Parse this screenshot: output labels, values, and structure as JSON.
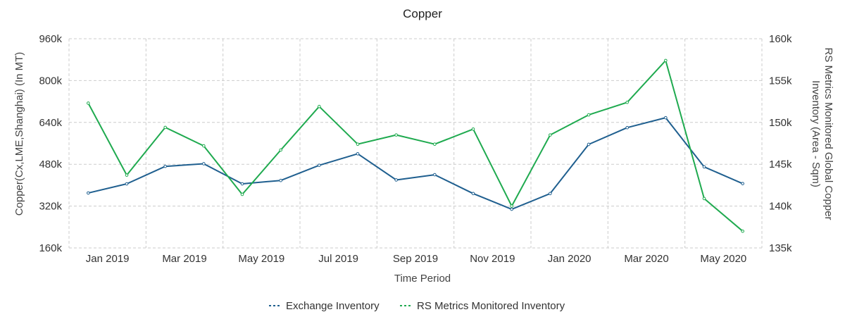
{
  "chart_data": {
    "type": "line",
    "title": "Copper",
    "xlabel": "Time Period",
    "ylabel_left": "Copper(Cx,LME,Shanghai) (In MT)",
    "ylabel_right": "RS Metrics Monitored Global Copper Inventory (Area - Sqm)",
    "x": [
      "Dec 2018",
      "Jan 2019",
      "Feb 2019",
      "Mar 2019",
      "Apr 2019",
      "May 2019",
      "Jun 2019",
      "Jul 2019",
      "Aug 2019",
      "Sep 2019",
      "Oct 2019",
      "Nov 2019",
      "Dec 2019",
      "Jan 2020",
      "Feb 2020",
      "Mar 2020",
      "Apr 2020",
      "May 2020"
    ],
    "x_tick_labels": [
      "Jan 2019",
      "Mar 2019",
      "May 2019",
      "Jul 2019",
      "Sep 2019",
      "Nov 2019",
      "Jan 2020",
      "Mar 2020",
      "May 2020"
    ],
    "left_ylim": [
      160000,
      960000
    ],
    "left_ticks": [
      160000,
      320000,
      480000,
      640000,
      800000,
      960000
    ],
    "left_tick_labels": [
      "160k",
      "320k",
      "480k",
      "640k",
      "800k",
      "960k"
    ],
    "right_ylim": [
      135000,
      160000
    ],
    "right_ticks": [
      135000,
      140000,
      145000,
      150000,
      155000,
      160000
    ],
    "right_tick_labels": [
      "135k",
      "140k",
      "145k",
      "150k",
      "155k",
      "160k"
    ],
    "series": [
      {
        "name": "Exchange Inventory",
        "axis": "left",
        "color": "#1f5f8f",
        "values": [
          370000,
          405000,
          472000,
          482000,
          405000,
          418000,
          476000,
          520000,
          420000,
          440000,
          368000,
          308000,
          368000,
          556000,
          620000,
          658000,
          470000,
          406000
        ]
      },
      {
        "name": "RS Metrics Monitored Inventory",
        "axis": "right",
        "color": "#1faa4f",
        "values": [
          152300,
          143700,
          149400,
          147200,
          141400,
          146700,
          151900,
          147400,
          148500,
          147400,
          149200,
          140000,
          148500,
          150900,
          152400,
          157400,
          140900,
          137000
        ]
      }
    ],
    "legend_position": "bottom-center"
  }
}
